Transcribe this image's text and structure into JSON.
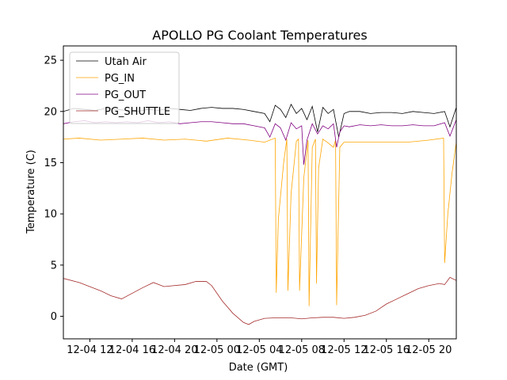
{
  "chart_data": {
    "type": "line",
    "title": "APOLLO PG Coolant Temperatures",
    "xlabel": "Date (GMT)",
    "ylabel": "Temperature (C)",
    "xlim": [
      9.5,
      46.6
    ],
    "ylim": [
      -2.2,
      26.4
    ],
    "x_unit": "hours since 2021-12-04 00:00 GMT",
    "x_ticks": [
      {
        "value": 12,
        "label": "12-04 12"
      },
      {
        "value": 16,
        "label": "12-04 16"
      },
      {
        "value": 20,
        "label": "12-04 20"
      },
      {
        "value": 24,
        "label": "12-05 00"
      },
      {
        "value": 28,
        "label": "12-05 04"
      },
      {
        "value": 32,
        "label": "12-05 08"
      },
      {
        "value": 36,
        "label": "12-05 12"
      },
      {
        "value": 40,
        "label": "12-05 16"
      },
      {
        "value": 44,
        "label": "12-05 20"
      }
    ],
    "y_ticks": [
      0,
      5,
      10,
      15,
      20,
      25
    ],
    "legend_position": "upper-left",
    "series": [
      {
        "name": "Utah Air",
        "color": "#000000",
        "x": [
          9.5,
          10.5,
          11.5,
          12.5,
          13.5,
          14.5,
          15.5,
          16.5,
          17.5,
          18.5,
          19.5,
          20.5,
          21.5,
          22.5,
          23.5,
          24.5,
          25.5,
          26.5,
          27.5,
          28.5,
          29.0,
          29.5,
          30.0,
          30.5,
          31.0,
          31.5,
          32.0,
          32.5,
          33.0,
          33.5,
          34.0,
          34.5,
          35.0,
          35.5,
          36.0,
          36.5,
          37.5,
          38.5,
          39.5,
          40.5,
          41.5,
          42.5,
          43.5,
          44.5,
          45.5,
          46.0,
          46.6
        ],
        "values": [
          20.0,
          20.3,
          20.2,
          20.1,
          20.3,
          20.2,
          20.1,
          20.0,
          20.2,
          20.1,
          20.3,
          20.2,
          20.1,
          20.3,
          20.4,
          20.3,
          20.3,
          20.2,
          20.0,
          19.8,
          19.0,
          20.6,
          20.2,
          19.4,
          20.7,
          19.8,
          20.3,
          19.2,
          20.5,
          18.0,
          20.4,
          19.8,
          20.2,
          17.5,
          19.8,
          20.0,
          20.0,
          19.8,
          19.9,
          19.9,
          19.8,
          20.0,
          19.9,
          19.8,
          20.0,
          18.5,
          20.4
        ]
      },
      {
        "name": "PG_IN",
        "color": "#ffa500",
        "x": [
          9.5,
          11,
          13,
          15,
          17,
          19,
          21,
          23,
          25,
          27,
          28.5,
          29.5,
          29.6,
          29.8,
          30.3,
          30.6,
          30.7,
          31.0,
          31.5,
          31.7,
          31.8,
          32.2,
          32.6,
          32.7,
          33.0,
          33.3,
          33.4,
          33.6,
          34.0,
          34.4,
          35.0,
          35.2,
          35.3,
          35.6,
          36.0,
          38,
          40,
          42,
          44,
          45.4,
          45.5,
          45.8,
          46.2,
          46.6
        ],
        "values": [
          17.3,
          17.4,
          17.2,
          17.3,
          17.4,
          17.2,
          17.3,
          17.1,
          17.4,
          17.2,
          17.0,
          17.4,
          2.3,
          9.5,
          15.0,
          17.3,
          2.5,
          12.0,
          17.1,
          17.3,
          2.5,
          13.5,
          17.2,
          1.0,
          16.5,
          17.3,
          3.2,
          14.5,
          17.3,
          17.0,
          16.5,
          17.2,
          1.1,
          16.5,
          17.0,
          17.0,
          17.0,
          17.0,
          17.2,
          17.4,
          5.2,
          10.0,
          14.0,
          17.0
        ]
      },
      {
        "name": "PG_OUT",
        "color": "#800080",
        "x": [
          9.5,
          10.5,
          11.5,
          12.5,
          13.5,
          14.5,
          15.5,
          16.5,
          17.5,
          18.5,
          19.5,
          20.5,
          21.5,
          22.5,
          23.5,
          24.5,
          25.5,
          26.5,
          27.5,
          28.5,
          29.0,
          29.5,
          30.0,
          30.5,
          31.0,
          31.5,
          32.0,
          32.2,
          32.5,
          33.0,
          33.5,
          34.0,
          34.5,
          35.0,
          35.3,
          35.6,
          36.0,
          36.5,
          37.5,
          38.5,
          39.5,
          40.5,
          41.5,
          42.5,
          43.5,
          44.5,
          45.5,
          46.0,
          46.6
        ],
        "values": [
          18.8,
          19.0,
          19.1,
          18.9,
          19.0,
          18.9,
          19.0,
          18.9,
          19.1,
          18.9,
          19.0,
          18.8,
          18.9,
          19.0,
          19.0,
          18.9,
          18.8,
          18.8,
          18.6,
          18.4,
          17.5,
          18.8,
          18.4,
          17.2,
          18.9,
          18.3,
          18.6,
          14.8,
          17.2,
          18.8,
          17.8,
          18.6,
          18.3,
          18.8,
          16.5,
          18.0,
          18.6,
          18.5,
          18.7,
          18.6,
          18.7,
          18.6,
          18.6,
          18.7,
          18.6,
          18.6,
          18.9,
          17.6,
          19.2
        ]
      },
      {
        "name": "PG_SHUTTLE",
        "color": "#a52a2a",
        "x": [
          9.5,
          11,
          13,
          14,
          15,
          17,
          18,
          19,
          21,
          22,
          23,
          23.5,
          24.5,
          25.5,
          26.5,
          27,
          27.5,
          28.5,
          29.5,
          31,
          32,
          33,
          34,
          35,
          36,
          37,
          38,
          39,
          40,
          41,
          42,
          43,
          44,
          45,
          45.5,
          46,
          46.6
        ],
        "values": [
          3.7,
          3.3,
          2.5,
          2.0,
          1.7,
          2.8,
          3.3,
          2.9,
          3.1,
          3.4,
          3.4,
          3.0,
          1.5,
          0.3,
          -0.6,
          -0.8,
          -0.5,
          -0.2,
          -0.15,
          -0.15,
          -0.25,
          -0.15,
          -0.1,
          -0.1,
          -0.2,
          -0.1,
          0.1,
          0.5,
          1.2,
          1.7,
          2.2,
          2.7,
          3.0,
          3.2,
          3.1,
          3.8,
          3.5
        ]
      }
    ]
  }
}
